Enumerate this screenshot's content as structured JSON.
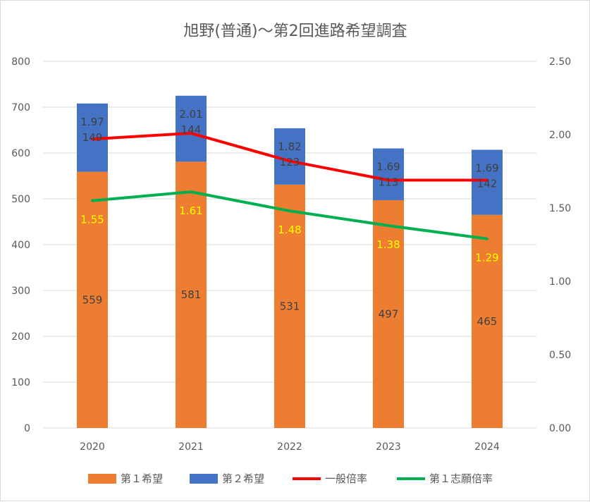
{
  "chart_data": {
    "type": "bar",
    "stacked": true,
    "title": "旭野(普通)～第2回進路希望調査",
    "categories": [
      "2020",
      "2021",
      "2022",
      "2023",
      "2024"
    ],
    "series": [
      {
        "name": "第１希望",
        "kind": "bar",
        "axis": "left",
        "color": "#ED7D31",
        "label_color": "#404040",
        "values": [
          559,
          581,
          531,
          497,
          465
        ]
      },
      {
        "name": "第２希望",
        "kind": "bar",
        "axis": "left",
        "color": "#4472C4",
        "label_color": "#404040",
        "values": [
          149,
          144,
          123,
          113,
          142
        ]
      },
      {
        "name": "一般倍率",
        "kind": "line",
        "axis": "right",
        "color": "#FF0000",
        "label_color": "#404040",
        "values": [
          1.97,
          2.01,
          1.82,
          1.69,
          1.69
        ],
        "labels": [
          "1.97",
          "2.01",
          "1.82",
          "1.69",
          "1.69"
        ]
      },
      {
        "name": "第１志願倍率",
        "kind": "line",
        "axis": "right",
        "color": "#00B050",
        "label_color": "#FFFF00",
        "values": [
          1.55,
          1.61,
          1.48,
          1.38,
          1.29
        ],
        "labels": [
          "1.55",
          "1.61",
          "1.48",
          "1.38",
          "1.29"
        ]
      }
    ],
    "y_left": {
      "min": 0,
      "max": 800,
      "ticks": [
        "0",
        "100",
        "200",
        "300",
        "400",
        "500",
        "600",
        "700",
        "800"
      ]
    },
    "y_right": {
      "min": 0,
      "max": 2.5,
      "ticks": [
        "0.00",
        "0.50",
        "1.00",
        "1.50",
        "2.00",
        "2.50"
      ]
    },
    "grid": true,
    "legend_position": "bottom"
  }
}
